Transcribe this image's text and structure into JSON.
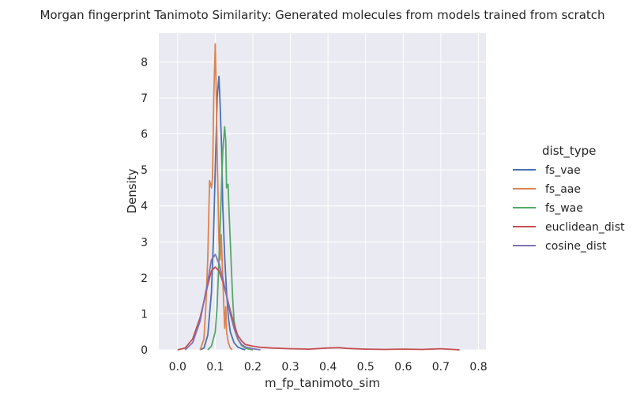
{
  "chart_data": {
    "type": "line",
    "title": "Morgan fingerprint Tanimoto Similarity: Generated molecules from models trained from scratch",
    "xlabel": "m_fp_tanimoto_sim",
    "ylabel": "Density",
    "xlim": [
      -0.05,
      0.82
    ],
    "ylim": [
      0,
      8.8
    ],
    "xticks": [
      0.0,
      0.1,
      0.2,
      0.3,
      0.4,
      0.5,
      0.6,
      0.7,
      0.8
    ],
    "xtick_labels": [
      "0.0",
      "0.1",
      "0.2",
      "0.3",
      "0.4",
      "0.5",
      "0.6",
      "0.7",
      "0.8"
    ],
    "yticks": [
      0,
      1,
      2,
      3,
      4,
      5,
      6,
      7,
      8
    ],
    "ytick_labels": [
      "0",
      "1",
      "2",
      "3",
      "4",
      "5",
      "6",
      "7",
      "8"
    ],
    "grid": true,
    "background": "#eaeaf2",
    "legend": {
      "title": "dist_type",
      "placement": "right-outside"
    },
    "series": [
      {
        "name": "fs_vae",
        "color": "#4c72b0",
        "x": [
          0.06,
          0.07,
          0.08,
          0.09,
          0.095,
          0.1,
          0.105,
          0.11,
          0.113,
          0.117,
          0.12,
          0.125,
          0.13,
          0.135,
          0.14,
          0.15,
          0.16,
          0.17,
          0.18
        ],
        "y": [
          0,
          0.05,
          0.4,
          1.6,
          3.0,
          5.0,
          7.0,
          7.6,
          6.8,
          5.6,
          4.0,
          2.6,
          1.6,
          0.9,
          0.5,
          0.2,
          0.08,
          0.03,
          0
        ]
      },
      {
        "name": "fs_aae",
        "color": "#dd8452",
        "x": [
          0.06,
          0.07,
          0.075,
          0.08,
          0.085,
          0.09,
          0.093,
          0.096,
          0.1,
          0.102,
          0.105,
          0.108,
          0.11,
          0.113,
          0.116,
          0.12,
          0.125,
          0.128,
          0.13,
          0.135,
          0.14,
          0.145
        ],
        "y": [
          0,
          0.3,
          1.2,
          2.5,
          4.7,
          4.5,
          4.8,
          7.0,
          8.5,
          7.5,
          5.5,
          4.0,
          3.0,
          2.5,
          3.2,
          2.0,
          0.6,
          1.2,
          0.5,
          0.2,
          0.05,
          0
        ]
      },
      {
        "name": "fs_wae",
        "color": "#55a868",
        "x": [
          0.08,
          0.09,
          0.1,
          0.105,
          0.11,
          0.115,
          0.12,
          0.125,
          0.128,
          0.13,
          0.134,
          0.138,
          0.142,
          0.146,
          0.15,
          0.16,
          0.17,
          0.18,
          0.19,
          0.2
        ],
        "y": [
          0,
          0.1,
          0.5,
          1.2,
          2.5,
          4.0,
          5.5,
          6.2,
          5.8,
          4.5,
          4.6,
          3.5,
          2.5,
          1.5,
          0.8,
          0.3,
          0.12,
          0.05,
          0.02,
          0
        ]
      },
      {
        "name": "euclidean_dist",
        "color": "#c44e52",
        "x": [
          0.0,
          0.02,
          0.04,
          0.06,
          0.08,
          0.09,
          0.1,
          0.11,
          0.12,
          0.13,
          0.14,
          0.15,
          0.16,
          0.17,
          0.18,
          0.2,
          0.22,
          0.25,
          0.3,
          0.35,
          0.4,
          0.43,
          0.45,
          0.5,
          0.55,
          0.6,
          0.65,
          0.7,
          0.75
        ],
        "y": [
          0,
          0.05,
          0.3,
          0.9,
          1.8,
          2.2,
          2.3,
          2.2,
          1.9,
          1.5,
          1.1,
          0.7,
          0.4,
          0.25,
          0.15,
          0.1,
          0.07,
          0.05,
          0.03,
          0.02,
          0.05,
          0.06,
          0.04,
          0.02,
          0.01,
          0.02,
          0.01,
          0.03,
          0
        ]
      },
      {
        "name": "cosine_dist",
        "color": "#8172b3",
        "x": [
          0.02,
          0.04,
          0.06,
          0.08,
          0.09,
          0.1,
          0.11,
          0.12,
          0.13,
          0.14,
          0.15,
          0.16,
          0.17,
          0.18,
          0.2,
          0.22
        ],
        "y": [
          0,
          0.2,
          0.8,
          1.9,
          2.5,
          2.65,
          2.4,
          2.0,
          1.5,
          1.0,
          0.6,
          0.3,
          0.15,
          0.08,
          0.03,
          0
        ]
      }
    ]
  }
}
